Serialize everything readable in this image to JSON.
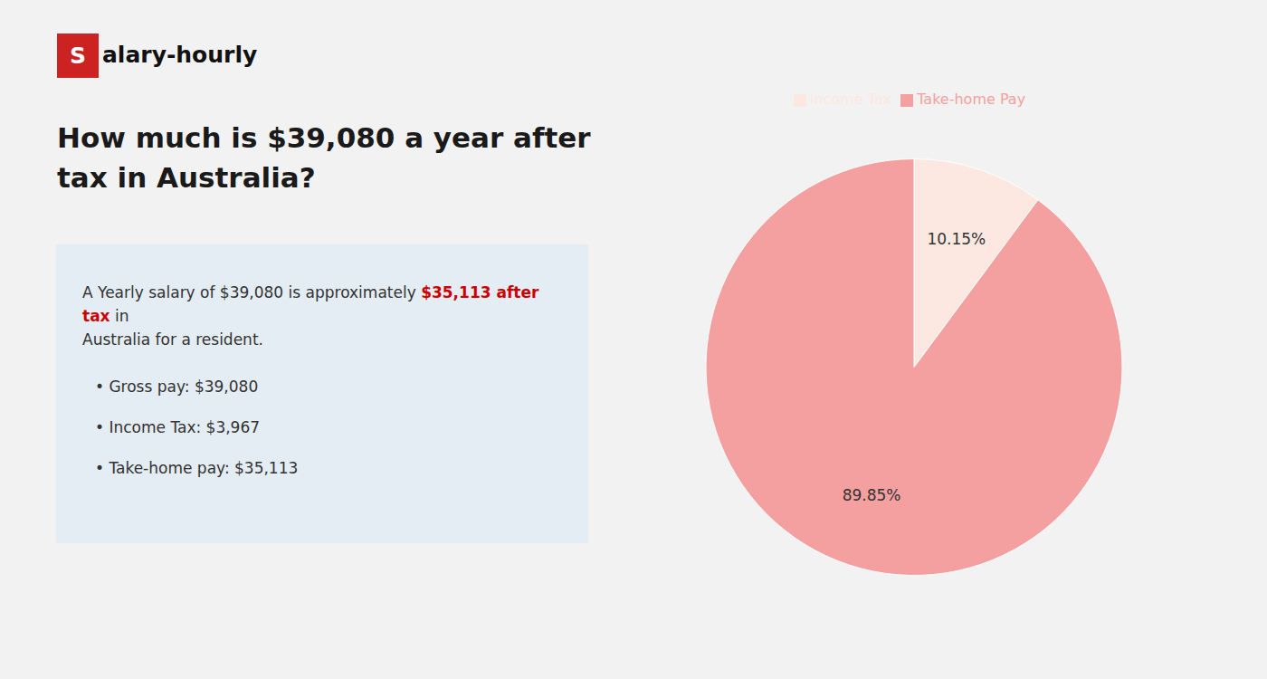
{
  "chart_data": {
    "type": "pie",
    "title": "How much is $39,080 a year after tax in Australia?",
    "categories": [
      "Income Tax",
      "Take-home Pay"
    ],
    "values": [
      10.15,
      89.85
    ],
    "value_labels": [
      "10.15%",
      "89.85%"
    ],
    "colors": [
      "#fce8e0",
      "#f4a0a0"
    ],
    "data_labels": true,
    "legend": "upper center",
    "annotations": [
      {
        "text": "S",
        "color": "#cc2222"
      },
      {
        "text": "alary-hourly",
        "color": "#111111"
      },
      {
        "text": "A Yearly salary of $39,080 is approximately ",
        "color": "#333333"
      },
      {
        "text": "$35,113 after tax",
        "color": "#cc0000"
      },
      {
        "text": " in",
        "color": "#333333"
      },
      {
        "text": "Australia for a resident.",
        "color": "#333333"
      },
      {
        "text": "•  Gross pay: $39,080",
        "color": "#333333"
      },
      {
        "text": "•  Income Tax: $3,967",
        "color": "#333333"
      },
      {
        "text": "•  Take-home pay: $35,113",
        "color": "#333333"
      }
    ]
  }
}
